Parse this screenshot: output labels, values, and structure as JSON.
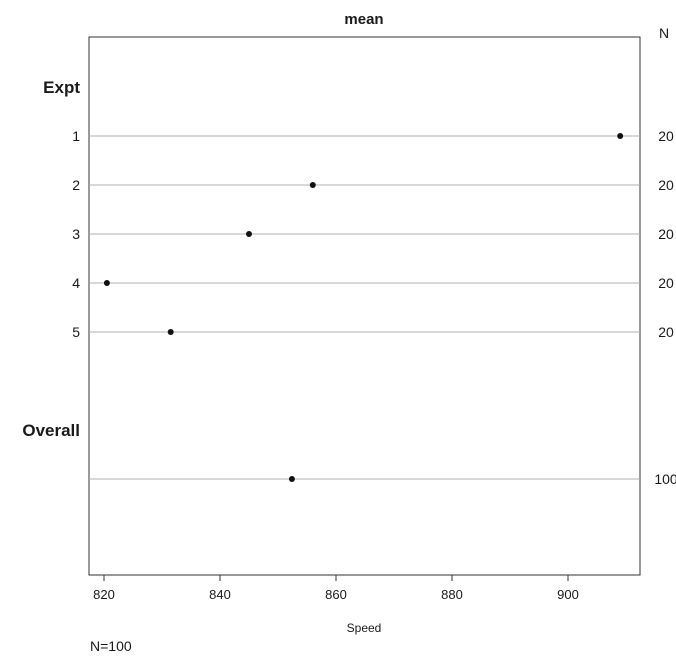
{
  "chart_data": {
    "type": "dot",
    "title": "mean",
    "n_header": "N",
    "xlabel": "Speed",
    "footnote": "N=100",
    "xlim": [
      817,
      912
    ],
    "xticks": [
      820,
      840,
      860,
      880,
      900
    ],
    "groups": [
      {
        "label": "Expt",
        "rows": [
          {
            "label": "1",
            "value": 909.0,
            "n": "20"
          },
          {
            "label": "2",
            "value": 856.0,
            "n": "20"
          },
          {
            "label": "3",
            "value": 845.0,
            "n": "20"
          },
          {
            "label": "4",
            "value": 820.5,
            "n": "20"
          },
          {
            "label": "5",
            "value": 831.5,
            "n": "20"
          }
        ]
      },
      {
        "label": "Overall",
        "rows": [
          {
            "label": "",
            "value": 852.4,
            "n": "100"
          }
        ]
      }
    ]
  }
}
